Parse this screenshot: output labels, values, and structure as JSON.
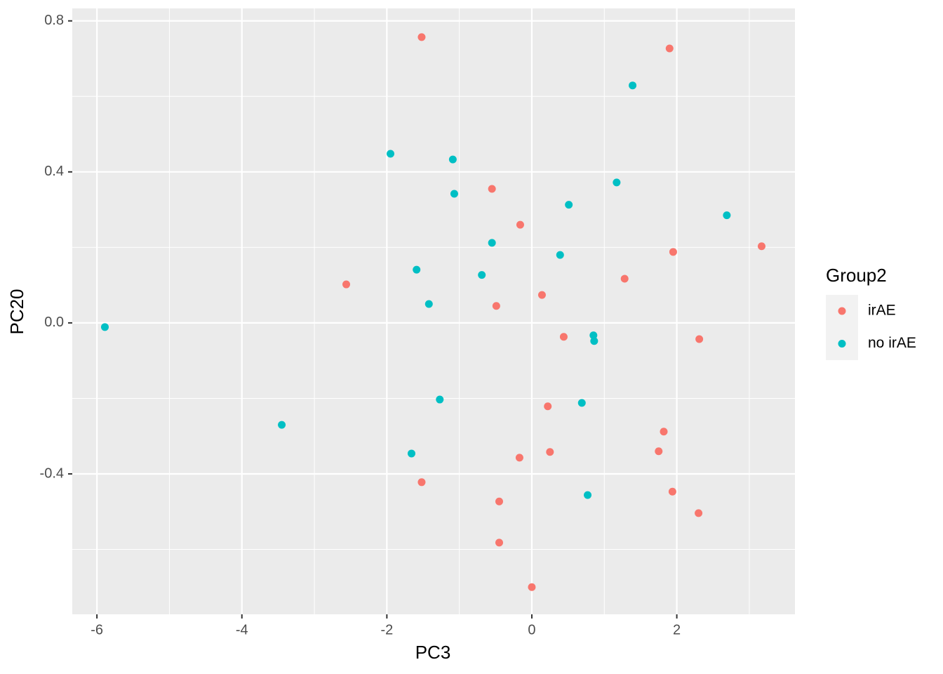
{
  "chart_data": {
    "type": "scatter",
    "xlabel": "PC3",
    "ylabel": "PC20",
    "legend_title": "Group2",
    "legend": "right",
    "xlim": [
      -6.34,
      3.63
    ],
    "ylim": [
      -0.772,
      0.833
    ],
    "xticks": [
      -6,
      -4,
      -2,
      0,
      2
    ],
    "yticks": [
      0.8,
      0.4,
      {
        "value": 0,
        "label": "0.0"
      },
      -0.4
    ],
    "xminorticks": [
      -5,
      -3,
      -1,
      1,
      3
    ],
    "yminorticks": [
      0.6,
      0.2,
      -0.2,
      -0.6
    ],
    "grid": true,
    "series": [
      {
        "name": "irAE",
        "color": "#F8766D",
        "x": [
          -1.52,
          1.9,
          -0.55,
          -0.16,
          1.95,
          3.17,
          -2.56,
          1.28,
          0.14,
          -0.49,
          0.44,
          2.31,
          0.22,
          1.82,
          1.75,
          0.25,
          -0.17,
          -1.52,
          1.94,
          -0.45,
          2.3,
          -0.45,
          0.0
        ],
        "values": [
          0.757,
          0.727,
          0.355,
          0.26,
          0.188,
          0.203,
          0.102,
          0.117,
          0.074,
          0.045,
          -0.037,
          -0.043,
          -0.221,
          -0.288,
          -0.34,
          -0.342,
          -0.357,
          -0.422,
          -0.447,
          -0.473,
          -0.504,
          -0.582,
          -0.7
        ]
      },
      {
        "name": "no irAE",
        "color": "#00BFC4",
        "x": [
          -5.89,
          -3.45,
          1.39,
          -1.95,
          -1.09,
          1.17,
          -1.07,
          0.51,
          2.69,
          -0.55,
          0.39,
          -1.59,
          -0.69,
          -1.42,
          0.85,
          0.86,
          -1.27,
          0.69,
          -1.66,
          0.77
        ],
        "values": [
          -0.011,
          -0.27,
          0.629,
          0.448,
          0.433,
          0.372,
          0.342,
          0.313,
          0.285,
          0.212,
          0.18,
          0.141,
          0.127,
          0.05,
          -0.033,
          -0.048,
          -0.203,
          -0.212,
          -0.346,
          -0.456
        ]
      }
    ]
  }
}
